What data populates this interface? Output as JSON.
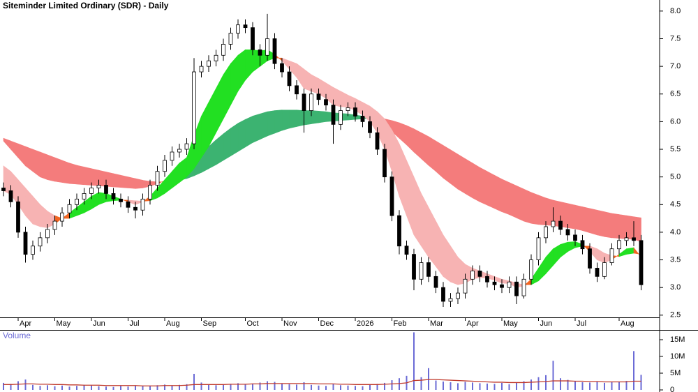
{
  "chart_data": [
    {
      "type": "candlestick",
      "title": "Siteminder Limited Ordinary (SDR) - Daily",
      "categories": [
        null,
        null,
        "Apr",
        null,
        null,
        null,
        null,
        "May",
        null,
        null,
        null,
        null,
        "Jun",
        null,
        null,
        null,
        null,
        "Jul",
        null,
        null,
        null,
        null,
        "Aug",
        null,
        null,
        null,
        null,
        "Sep",
        null,
        null,
        null,
        null,
        null,
        "Oct",
        null,
        null,
        null,
        null,
        "Nov",
        null,
        null,
        null,
        null,
        "Dec",
        null,
        null,
        null,
        null,
        "2026",
        null,
        null,
        null,
        null,
        "Feb",
        null,
        null,
        null,
        null,
        "Mar",
        null,
        null,
        null,
        null,
        "Apr",
        null,
        null,
        null,
        null,
        "May",
        null,
        null,
        null,
        null,
        "Jun",
        null,
        null,
        null,
        null,
        "Jul",
        null,
        null,
        null,
        null,
        null,
        "Aug",
        null,
        null,
        null
      ],
      "open": [
        4.8,
        4.75,
        4.55,
        4.0,
        3.6,
        3.75,
        3.9,
        4.05,
        4.2,
        4.35,
        4.5,
        4.6,
        4.7,
        4.8,
        4.85,
        4.7,
        4.6,
        4.55,
        4.45,
        4.4,
        4.6,
        4.85,
        5.1,
        5.3,
        5.45,
        5.5,
        5.6,
        6.9,
        7.0,
        7.1,
        7.2,
        7.4,
        7.6,
        7.75,
        7.7,
        7.3,
        7.2,
        7.5,
        7.05,
        6.9,
        6.65,
        6.5,
        6.2,
        6.5,
        6.4,
        6.3,
        5.95,
        6.2,
        6.25,
        6.1,
        6.0,
        5.8,
        5.5,
        5.0,
        4.3,
        3.75,
        3.6,
        3.15,
        3.45,
        3.2,
        3.0,
        2.75,
        2.8,
        2.9,
        3.15,
        3.3,
        3.2,
        3.1,
        3.05,
        3.0,
        3.1,
        2.85,
        3.15,
        3.5,
        3.9,
        4.1,
        4.2,
        4.05,
        3.95,
        3.85,
        3.7,
        3.35,
        3.2,
        3.45,
        3.7,
        3.85,
        3.9,
        3.85
      ],
      "high": [
        4.9,
        4.85,
        4.65,
        4.1,
        3.85,
        4.0,
        4.15,
        4.3,
        4.45,
        4.6,
        4.7,
        4.8,
        4.9,
        4.95,
        4.95,
        4.8,
        4.7,
        4.65,
        4.55,
        4.7,
        4.95,
        5.2,
        5.4,
        5.55,
        5.6,
        5.7,
        7.15,
        7.1,
        7.2,
        7.3,
        7.5,
        7.7,
        7.85,
        7.85,
        7.8,
        7.4,
        7.95,
        7.6,
        7.15,
        7.0,
        6.75,
        6.6,
        6.6,
        6.6,
        6.5,
        6.4,
        6.3,
        6.35,
        6.35,
        6.2,
        6.1,
        5.9,
        5.6,
        5.1,
        4.4,
        3.85,
        3.7,
        3.55,
        3.55,
        3.3,
        3.1,
        2.9,
        3.0,
        3.25,
        3.4,
        3.4,
        3.3,
        3.2,
        3.15,
        3.2,
        3.2,
        3.25,
        3.6,
        4.0,
        4.2,
        4.45,
        4.3,
        4.15,
        4.05,
        3.95,
        3.8,
        3.45,
        3.55,
        3.8,
        3.95,
        4.0,
        4.2,
        3.95
      ],
      "low": [
        4.65,
        4.45,
        3.9,
        3.45,
        3.5,
        3.65,
        3.8,
        3.95,
        4.1,
        4.25,
        4.4,
        4.5,
        4.6,
        4.7,
        4.6,
        4.5,
        4.45,
        4.35,
        4.25,
        4.3,
        4.5,
        4.75,
        5.0,
        5.2,
        5.35,
        5.4,
        5.5,
        6.8,
        6.9,
        7.0,
        7.1,
        7.3,
        7.5,
        7.6,
        7.2,
        7.0,
        7.1,
        6.95,
        6.8,
        6.55,
        6.4,
        5.8,
        6.1,
        6.3,
        6.2,
        5.6,
        5.85,
        6.1,
        6.0,
        5.9,
        5.7,
        5.4,
        4.9,
        4.2,
        3.6,
        3.5,
        2.95,
        3.05,
        3.1,
        2.9,
        2.65,
        2.65,
        2.7,
        2.8,
        3.05,
        3.1,
        3.0,
        2.95,
        2.9,
        2.9,
        2.7,
        2.8,
        3.05,
        3.4,
        3.8,
        4.0,
        3.95,
        3.85,
        3.75,
        3.6,
        3.25,
        3.1,
        3.15,
        3.4,
        3.6,
        3.75,
        3.75,
        2.95
      ],
      "close": [
        4.75,
        4.55,
        4.0,
        3.6,
        3.75,
        3.9,
        4.05,
        4.2,
        4.35,
        4.5,
        4.6,
        4.7,
        4.8,
        4.85,
        4.7,
        4.6,
        4.55,
        4.45,
        4.4,
        4.6,
        4.85,
        5.1,
        5.3,
        5.45,
        5.5,
        5.6,
        6.9,
        7.0,
        7.1,
        7.2,
        7.4,
        7.6,
        7.75,
        7.7,
        7.3,
        7.2,
        7.5,
        7.05,
        6.9,
        6.65,
        6.5,
        6.2,
        6.5,
        6.4,
        6.3,
        5.95,
        6.2,
        6.25,
        6.1,
        6.0,
        5.8,
        5.5,
        5.0,
        4.3,
        3.75,
        3.6,
        3.15,
        3.45,
        3.2,
        3.0,
        2.75,
        2.8,
        2.9,
        3.15,
        3.3,
        3.2,
        3.1,
        3.05,
        3.0,
        3.1,
        2.85,
        3.15,
        3.5,
        3.9,
        4.1,
        4.2,
        4.05,
        3.95,
        3.85,
        3.7,
        3.35,
        3.2,
        3.45,
        3.7,
        3.85,
        3.9,
        3.85,
        3.05
      ],
      "up_color": "#ffffff",
      "down_color": "#000000",
      "wick_color": "#000000",
      "ribbons": [
        {
          "fast": [
            5.65,
            5.5,
            5.35,
            5.2,
            5.1,
            5.0,
            4.95,
            4.92,
            4.9,
            4.88,
            4.87,
            4.86,
            4.85,
            4.84,
            4.83,
            4.82,
            4.81,
            4.8,
            4.79,
            4.8,
            4.83,
            4.88,
            4.93,
            4.98,
            5.04,
            5.12,
            5.28,
            5.42,
            5.55,
            5.67,
            5.78,
            5.88,
            5.97,
            6.04,
            6.1,
            6.14,
            6.18,
            6.2,
            6.21,
            6.21,
            6.21,
            6.2,
            6.2,
            6.19,
            6.18,
            6.16,
            6.15,
            6.14,
            6.12,
            6.1,
            6.07,
            6.01,
            5.93,
            5.82,
            5.7,
            5.58,
            5.45,
            5.33,
            5.21,
            5.1,
            4.98,
            4.88,
            4.78,
            4.7,
            4.62,
            4.55,
            4.49,
            4.43,
            4.37,
            4.32,
            4.26,
            4.2,
            4.16,
            4.14,
            4.13,
            4.12,
            4.1,
            4.08,
            4.06,
            4.03,
            3.99,
            3.95,
            3.92,
            3.9,
            3.89,
            3.88,
            3.87,
            3.83
          ],
          "slow": [
            5.7,
            5.65,
            5.6,
            5.55,
            5.5,
            5.45,
            5.4,
            5.35,
            5.3,
            5.25,
            5.21,
            5.18,
            5.15,
            5.12,
            5.09,
            5.06,
            5.03,
            5.0,
            4.97,
            4.94,
            4.92,
            4.91,
            4.91,
            4.92,
            4.94,
            4.97,
            5.02,
            5.08,
            5.15,
            5.22,
            5.3,
            5.38,
            5.46,
            5.54,
            5.62,
            5.68,
            5.74,
            5.79,
            5.84,
            5.88,
            5.91,
            5.94,
            5.96,
            5.98,
            6.0,
            6.01,
            6.02,
            6.03,
            6.04,
            6.05,
            6.06,
            6.06,
            6.05,
            6.02,
            5.98,
            5.93,
            5.87,
            5.8,
            5.73,
            5.65,
            5.57,
            5.49,
            5.41,
            5.33,
            5.25,
            5.17,
            5.1,
            5.03,
            4.96,
            4.9,
            4.84,
            4.78,
            4.72,
            4.67,
            4.62,
            4.58,
            4.55,
            4.52,
            4.49,
            4.46,
            4.43,
            4.4,
            4.37,
            4.34,
            4.32,
            4.3,
            4.28,
            4.26
          ],
          "up_color": "#3cb371",
          "down_color": "#f47c7c",
          "cross_color": "#f26522"
        },
        {
          "fast": [
            4.75,
            4.68,
            4.5,
            4.3,
            4.15,
            4.1,
            4.08,
            4.15,
            4.25,
            4.35,
            4.45,
            4.55,
            4.65,
            4.72,
            4.7,
            4.65,
            4.6,
            4.55,
            4.5,
            4.55,
            4.65,
            4.8,
            4.95,
            5.1,
            5.25,
            5.35,
            5.75,
            6.1,
            6.35,
            6.6,
            6.85,
            7.05,
            7.2,
            7.3,
            7.3,
            7.28,
            7.3,
            7.22,
            7.1,
            6.95,
            6.8,
            6.6,
            6.55,
            6.5,
            6.42,
            6.3,
            6.27,
            6.26,
            6.2,
            6.12,
            6.0,
            5.8,
            5.5,
            5.1,
            4.65,
            4.3,
            3.95,
            3.75,
            3.55,
            3.38,
            3.2,
            3.1,
            3.05,
            3.08,
            3.15,
            3.18,
            3.17,
            3.13,
            3.08,
            3.07,
            3.0,
            3.03,
            3.15,
            3.35,
            3.55,
            3.7,
            3.78,
            3.82,
            3.83,
            3.78,
            3.65,
            3.5,
            3.45,
            3.5,
            3.6,
            3.7,
            3.72,
            3.55
          ],
          "slow": [
            5.2,
            5.1,
            4.95,
            4.8,
            4.65,
            4.5,
            4.38,
            4.3,
            4.25,
            4.25,
            4.3,
            4.35,
            4.42,
            4.5,
            4.55,
            4.57,
            4.58,
            4.58,
            4.57,
            4.56,
            4.57,
            4.62,
            4.7,
            4.8,
            4.9,
            5.0,
            5.15,
            5.35,
            5.55,
            5.8,
            6.05,
            6.3,
            6.55,
            6.75,
            6.9,
            7.0,
            7.1,
            7.15,
            7.15,
            7.1,
            7.05,
            6.95,
            6.85,
            6.78,
            6.7,
            6.62,
            6.55,
            6.48,
            6.42,
            6.35,
            6.28,
            6.18,
            6.05,
            5.85,
            5.6,
            5.3,
            5.0,
            4.7,
            4.45,
            4.2,
            3.95,
            3.75,
            3.55,
            3.42,
            3.35,
            3.3,
            3.25,
            3.2,
            3.15,
            3.12,
            3.08,
            3.05,
            3.05,
            3.12,
            3.25,
            3.4,
            3.55,
            3.65,
            3.72,
            3.75,
            3.75,
            3.7,
            3.62,
            3.58,
            3.56,
            3.6,
            3.62,
            3.6
          ],
          "up_color": "#22e022",
          "down_color": "#f7b3b3",
          "cross_color": "#f26522"
        }
      ],
      "ylim": [
        2.46,
        8.2
      ],
      "yticks": [
        {
          "value": 2.5,
          "label": "2.5"
        },
        {
          "value": 3,
          "label": "3.0"
        },
        3.5,
        {
          "value": 4,
          "label": "4.0"
        },
        4.5,
        {
          "value": 5,
          "label": "5.0"
        },
        5.5,
        {
          "value": 6,
          "label": "6.0"
        },
        6.5,
        {
          "value": 7,
          "label": "7.0"
        },
        7.5,
        {
          "value": 8,
          "label": "8.0"
        }
      ]
    },
    {
      "type": "bar",
      "title": "Volume",
      "color": "#6b6bd6",
      "values": [
        2100000,
        1800000,
        2600000,
        3100000,
        1500000,
        1200000,
        1400000,
        1100000,
        1300000,
        1000000,
        1200000,
        1500000,
        1300000,
        1100000,
        1000000,
        900000,
        1200000,
        1000000,
        1300000,
        1200000,
        1100000,
        1400000,
        1600000,
        1300000,
        1500000,
        1700000,
        4800000,
        2200000,
        1600000,
        1400000,
        1500000,
        1800000,
        2000000,
        1700000,
        1900000,
        2200000,
        2600000,
        2400000,
        1900000,
        1700000,
        1600000,
        2300000,
        1500000,
        1300000,
        1200000,
        1800000,
        1400000,
        1300000,
        1200000,
        1100000,
        1500000,
        1800000,
        2100000,
        2900000,
        3500000,
        4200000,
        17200000,
        3800000,
        6500000,
        2800000,
        2500000,
        2300000,
        2000000,
        2400000,
        2200000,
        2000000,
        1900000,
        1800000,
        2100000,
        1700000,
        2200000,
        2600000,
        3100000,
        3800000,
        4400000,
        8700000,
        3500000,
        3000000,
        2500000,
        2300000,
        2200000,
        2600000,
        2100000,
        2300000,
        2500000,
        2700000,
        11600000,
        4500000
      ],
      "series": [
        {
          "color": "#c0392b",
          "values": [
            1600000,
            1600000,
            1700000,
            1800000,
            1800000,
            1700000,
            1700000,
            1600000,
            1600000,
            1500000,
            1500000,
            1400000,
            1400000,
            1400000,
            1300000,
            1300000,
            1300000,
            1300000,
            1300000,
            1200000,
            1200000,
            1200000,
            1300000,
            1300000,
            1300000,
            1400000,
            1600000,
            1600000,
            1600000,
            1600000,
            1600000,
            1700000,
            1700000,
            1700000,
            1800000,
            1800000,
            1900000,
            1900000,
            1900000,
            1900000,
            1900000,
            1900000,
            1900000,
            1800000,
            1800000,
            1800000,
            1700000,
            1700000,
            1600000,
            1600000,
            1600000,
            1600000,
            1700000,
            1800000,
            1900000,
            2100000,
            2800000,
            2900000,
            3100000,
            3100000,
            3000000,
            2900000,
            2800000,
            2700000,
            2600000,
            2500000,
            2400000,
            2300000,
            2300000,
            2200000,
            2200000,
            2200000,
            2300000,
            2400000,
            2500000,
            2700000,
            2700000,
            2700000,
            2600000,
            2600000,
            2500000,
            2500000,
            2400000,
            2400000,
            2400000,
            2400000,
            2600000,
            2600000
          ]
        }
      ],
      "ylim": [
        0,
        17500000
      ],
      "yticks": [
        0,
        {
          "value": 5000000,
          "label": "5M"
        },
        {
          "value": 10000000,
          "label": "10M"
        },
        {
          "value": 15000000,
          "label": "15M"
        }
      ]
    }
  ]
}
